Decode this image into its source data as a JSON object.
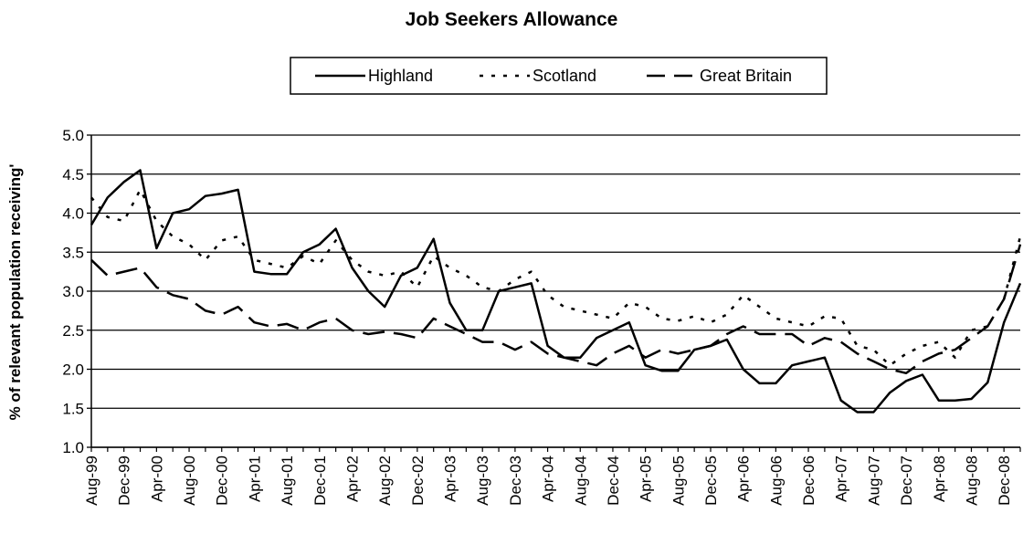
{
  "chart_data": {
    "type": "line",
    "title": "Job Seekers Allowance",
    "xlabel": "",
    "ylabel": "% of relevant population receiving'",
    "ylim": [
      1.0,
      5.0
    ],
    "yticks": [
      1.0,
      1.5,
      2.0,
      2.5,
      3.0,
      3.5,
      4.0,
      4.5,
      5.0
    ],
    "ytick_labels": [
      "1.0",
      "1.5",
      "2.0",
      "2.5",
      "3.0",
      "3.5",
      "4.0",
      "4.5",
      "5.0"
    ],
    "grid": true,
    "legend_position": "top",
    "x": [
      "Aug-99",
      "Oct-99",
      "Dec-99",
      "Feb-00",
      "Apr-00",
      "Jun-00",
      "Aug-00",
      "Oct-00",
      "Dec-00",
      "Feb-01",
      "Apr-01",
      "Jun-01",
      "Aug-01",
      "Oct-01",
      "Dec-01",
      "Feb-02",
      "Apr-02",
      "Jun-02",
      "Aug-02",
      "Oct-02",
      "Dec-02",
      "Feb-03",
      "Apr-03",
      "Jun-03",
      "Aug-03",
      "Oct-03",
      "Dec-03",
      "Feb-04",
      "Apr-04",
      "Jun-04",
      "Aug-04",
      "Oct-04",
      "Dec-04",
      "Feb-05",
      "Apr-05",
      "Jun-05",
      "Aug-05",
      "Oct-05",
      "Dec-05",
      "Feb-06",
      "Apr-06",
      "Jun-06",
      "Aug-06",
      "Oct-06",
      "Dec-06",
      "Feb-07",
      "Apr-07",
      "Jun-07",
      "Aug-07",
      "Oct-07",
      "Dec-07",
      "Feb-08",
      "Apr-08",
      "Jun-08",
      "Aug-08",
      "Oct-08",
      "Dec-08",
      "Feb-09"
    ],
    "x_tick_labels": [
      "Aug-99",
      "Dec-99",
      "Apr-00",
      "Aug-00",
      "Dec-00",
      "Apr-01",
      "Aug-01",
      "Dec-01",
      "Apr-02",
      "Aug-02",
      "Dec-02",
      "Apr-03",
      "Aug-03",
      "Dec-03",
      "Apr-04",
      "Aug-04",
      "Dec-04",
      "Apr-05",
      "Aug-05",
      "Dec-05",
      "Apr-06",
      "Aug-06",
      "Dec-06",
      "Apr-07",
      "Aug-07",
      "Dec-07",
      "Apr-08",
      "Aug-08",
      "Dec-08"
    ],
    "series": [
      {
        "name": "Highland",
        "style": "solid",
        "color": "#000000",
        "values": [
          3.85,
          4.2,
          4.4,
          4.55,
          3.55,
          4.0,
          4.05,
          4.22,
          4.25,
          4.3,
          3.25,
          3.22,
          3.22,
          3.5,
          3.6,
          3.8,
          3.3,
          3.0,
          2.8,
          3.2,
          3.3,
          3.67,
          2.85,
          2.5,
          2.5,
          3.0,
          3.05,
          3.1,
          2.3,
          2.15,
          2.15,
          2.4,
          2.5,
          2.6,
          2.05,
          1.98,
          1.98,
          2.25,
          2.3,
          2.38,
          2.0,
          1.82,
          1.82,
          2.05,
          2.1,
          2.15,
          1.6,
          1.45,
          1.45,
          1.7,
          1.85,
          1.93,
          1.6,
          1.6,
          1.62,
          1.83,
          2.6,
          3.1
        ]
      },
      {
        "name": "Scotland",
        "style": "dotted",
        "color": "#000000",
        "values": [
          4.2,
          3.95,
          3.9,
          4.3,
          3.9,
          3.7,
          3.6,
          3.4,
          3.65,
          3.7,
          3.4,
          3.35,
          3.3,
          3.45,
          3.35,
          3.65,
          3.4,
          3.25,
          3.2,
          3.25,
          3.05,
          3.45,
          3.3,
          3.2,
          3.05,
          3.0,
          3.15,
          3.25,
          2.95,
          2.8,
          2.75,
          2.7,
          2.65,
          2.85,
          2.8,
          2.65,
          2.62,
          2.68,
          2.6,
          2.7,
          2.95,
          2.8,
          2.65,
          2.6,
          2.55,
          2.68,
          2.65,
          2.3,
          2.25,
          2.05,
          2.2,
          2.3,
          2.35,
          2.15,
          2.5,
          2.55,
          2.9,
          3.7
        ]
      },
      {
        "name": "Great Britain",
        "style": "dashed",
        "color": "#000000",
        "values": [
          3.4,
          3.2,
          3.25,
          3.3,
          3.05,
          2.95,
          2.9,
          2.75,
          2.7,
          2.8,
          2.6,
          2.55,
          2.58,
          2.5,
          2.6,
          2.65,
          2.5,
          2.45,
          2.48,
          2.45,
          2.4,
          2.65,
          2.55,
          2.45,
          2.35,
          2.35,
          2.25,
          2.35,
          2.2,
          2.15,
          2.1,
          2.05,
          2.2,
          2.3,
          2.15,
          2.25,
          2.2,
          2.25,
          2.3,
          2.45,
          2.55,
          2.45,
          2.45,
          2.45,
          2.3,
          2.4,
          2.35,
          2.2,
          2.1,
          2.0,
          1.95,
          2.1,
          2.2,
          2.25,
          2.4,
          2.55,
          2.9,
          3.6
        ]
      }
    ]
  }
}
